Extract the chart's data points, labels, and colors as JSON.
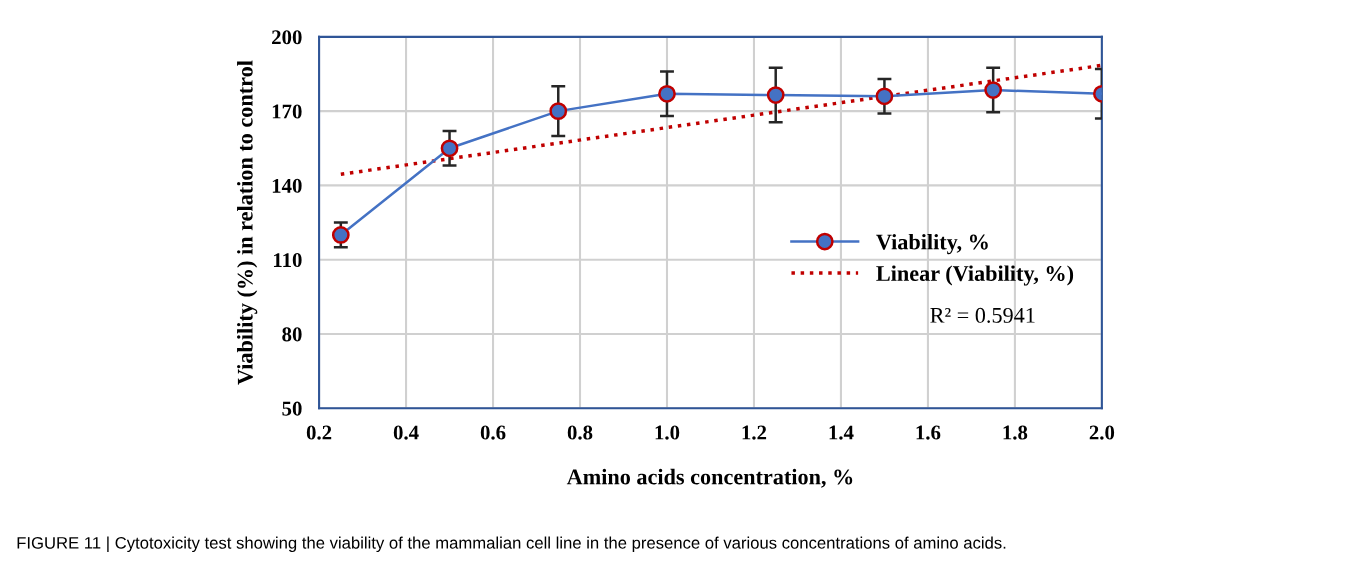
{
  "chart_data": {
    "type": "line",
    "xlabel": "Amino acids concentration, %",
    "ylabel": "Viability (%) in relation to control",
    "xlim": [
      0.2,
      2.0
    ],
    "xticks": [
      0.2,
      0.4,
      0.6,
      0.8,
      {
        "value": 1,
        "label": "1.0"
      },
      1.2,
      1.4,
      1.6,
      1.8,
      {
        "value": 2,
        "label": "2.0"
      }
    ],
    "ylim": [
      50,
      200
    ],
    "yticks": [
      50,
      80,
      110,
      140,
      170,
      200
    ],
    "grid": true,
    "legend": "right",
    "series": [
      {
        "name": "Viability, %",
        "color": "#4472c4",
        "marker": "circle",
        "line_style": "solid",
        "x": [
          0.25,
          0.5,
          0.75,
          1.0,
          1.25,
          1.5,
          1.75,
          2.0
        ],
        "values": [
          120,
          155,
          170,
          177,
          176.5,
          176,
          178.5,
          177
        ],
        "errors": [
          5,
          7,
          10,
          9,
          11,
          7,
          9,
          10
        ]
      },
      {
        "name": "Linear (Viability, %)",
        "color": "#c00000",
        "marker": "none",
        "line_style": "dotted",
        "x": [
          0.25,
          2.0
        ],
        "values": [
          144.5,
          188.5
        ]
      }
    ],
    "annotations": [
      "R² = 0.5941",
      "FIGURE 11 | Cytotoxicity test showing the viability of the mammalian cell line in the presence of various concentrations of amino acids."
    ]
  }
}
